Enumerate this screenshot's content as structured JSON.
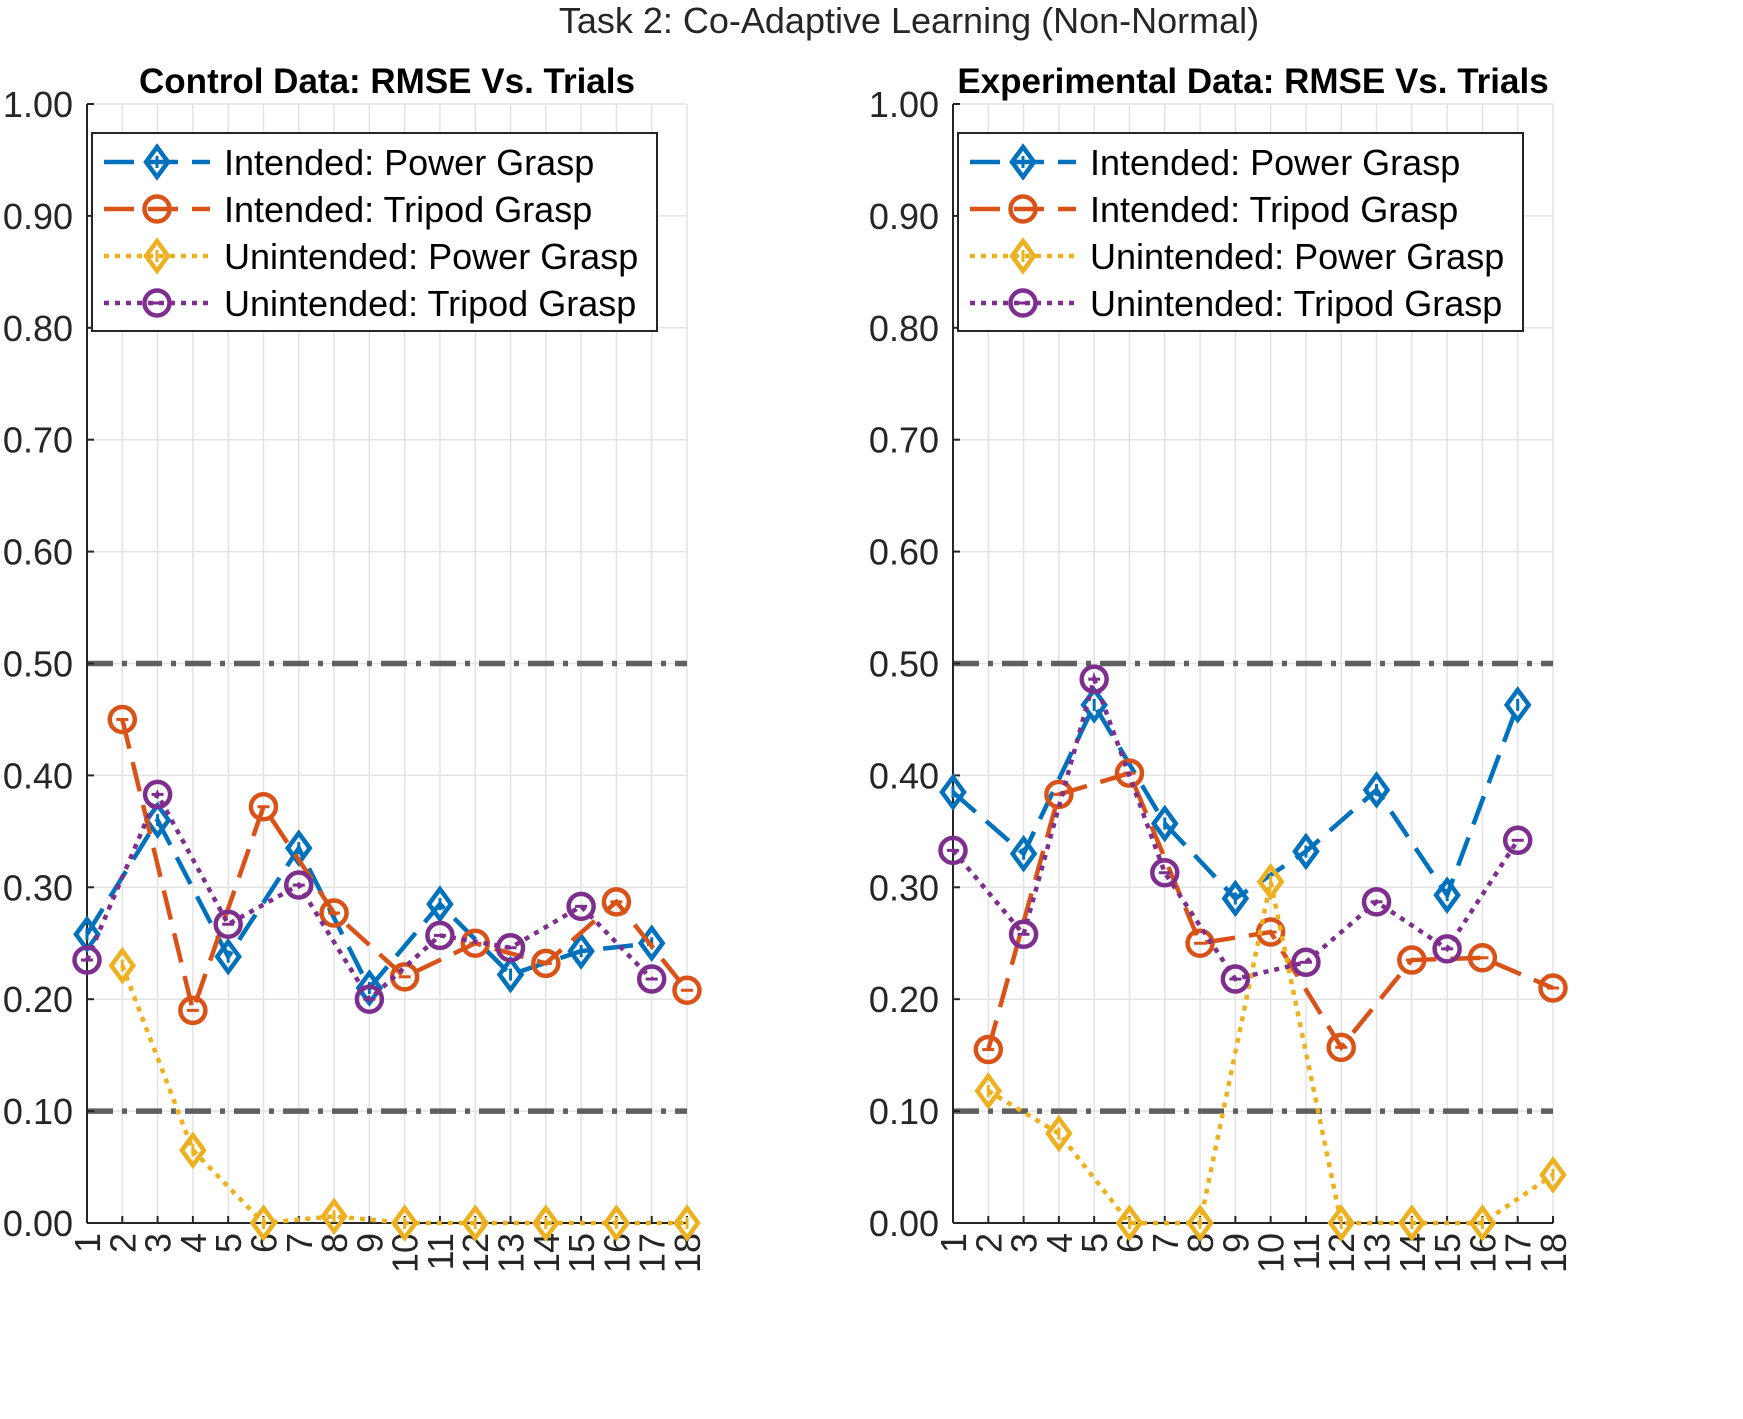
{
  "suptitle": "Task 2: Co-Adaptive Learning (Non-Normal)",
  "chart_data": [
    {
      "type": "line",
      "title": "Control Data: RMSE Vs. Trials",
      "xlabel": "",
      "ylabel": "",
      "x": [
        1,
        2,
        3,
        4,
        5,
        6,
        7,
        8,
        9,
        10,
        11,
        12,
        13,
        14,
        15,
        16,
        17,
        18
      ],
      "xlim": [
        1,
        18
      ],
      "ylim": [
        0,
        1
      ],
      "yticks": [
        "0.00",
        "0.10",
        "0.20",
        "0.30",
        "0.40",
        "0.50",
        "0.60",
        "0.70",
        "0.80",
        "0.90",
        "1.00"
      ],
      "xtick_rotation": "vertical",
      "grid": true,
      "legend_position": "top-left",
      "threshold_lines": [
        0.5,
        0.1
      ],
      "series": [
        {
          "name": "Intended: Power Grasp",
          "color": "#0072BD",
          "line_style": "dashed",
          "marker": "diamond",
          "values": [
            0.258,
            null,
            0.36,
            null,
            0.238,
            null,
            0.335,
            null,
            0.21,
            null,
            0.285,
            null,
            0.222,
            null,
            0.243,
            null,
            0.25,
            null
          ]
        },
        {
          "name": "Intended: Tripod Grasp",
          "color": "#D95319",
          "line_style": "dashed",
          "marker": "circle",
          "values": [
            null,
            0.45,
            null,
            0.19,
            null,
            0.372,
            null,
            0.277,
            null,
            0.22,
            null,
            0.25,
            null,
            0.232,
            null,
            0.287,
            null,
            0.208
          ]
        },
        {
          "name": "Unintended: Power Grasp",
          "color": "#EDB120",
          "line_style": "dotted",
          "marker": "diamond",
          "values": [
            null,
            0.23,
            null,
            0.065,
            null,
            0.0,
            null,
            0.006,
            null,
            0.0,
            null,
            0.0,
            null,
            0.0,
            null,
            0.0,
            null,
            0.0
          ]
        },
        {
          "name": "Unintended: Tripod Grasp",
          "color": "#7E2F8E",
          "line_style": "dotted",
          "marker": "circle",
          "values": [
            0.235,
            null,
            0.383,
            null,
            0.267,
            null,
            0.302,
            null,
            0.2,
            null,
            0.257,
            null,
            0.246,
            null,
            0.283,
            null,
            0.218,
            null
          ]
        }
      ]
    },
    {
      "type": "line",
      "title": "Experimental Data: RMSE Vs. Trials",
      "xlabel": "",
      "ylabel": "",
      "x": [
        1,
        2,
        3,
        4,
        5,
        6,
        7,
        8,
        9,
        10,
        11,
        12,
        13,
        14,
        15,
        16,
        17,
        18
      ],
      "xlim": [
        1,
        18
      ],
      "ylim": [
        0,
        1
      ],
      "yticks": [
        "0.00",
        "0.10",
        "0.20",
        "0.30",
        "0.40",
        "0.50",
        "0.60",
        "0.70",
        "0.80",
        "0.90",
        "1.00"
      ],
      "xtick_rotation": "vertical",
      "grid": true,
      "legend_position": "top-left",
      "threshold_lines": [
        0.5,
        0.1
      ],
      "series": [
        {
          "name": "Intended: Power Grasp",
          "color": "#0072BD",
          "line_style": "dashed",
          "marker": "diamond",
          "values": [
            0.385,
            null,
            0.33,
            null,
            0.463,
            null,
            0.357,
            null,
            0.29,
            null,
            0.332,
            null,
            0.387,
            null,
            0.293,
            null,
            0.463,
            null
          ]
        },
        {
          "name": "Intended: Tripod Grasp",
          "color": "#D95319",
          "line_style": "dashed",
          "marker": "circle",
          "values": [
            null,
            0.155,
            null,
            0.383,
            null,
            0.402,
            null,
            0.25,
            null,
            0.26,
            null,
            0.157,
            null,
            0.235,
            null,
            0.237,
            null,
            0.21
          ]
        },
        {
          "name": "Unintended: Power Grasp",
          "color": "#EDB120",
          "line_style": "dotted",
          "marker": "diamond",
          "values": [
            null,
            0.118,
            null,
            0.08,
            null,
            0.0,
            null,
            0.0,
            null,
            0.305,
            null,
            0.0,
            null,
            0.0,
            null,
            0.0,
            null,
            0.043
          ]
        },
        {
          "name": "Unintended: Tripod Grasp",
          "color": "#7E2F8E",
          "line_style": "dotted",
          "marker": "circle",
          "values": [
            0.333,
            null,
            0.258,
            null,
            0.486,
            null,
            0.313,
            null,
            0.218,
            null,
            0.233,
            null,
            0.287,
            null,
            0.245,
            null,
            0.342,
            null
          ]
        }
      ]
    }
  ]
}
